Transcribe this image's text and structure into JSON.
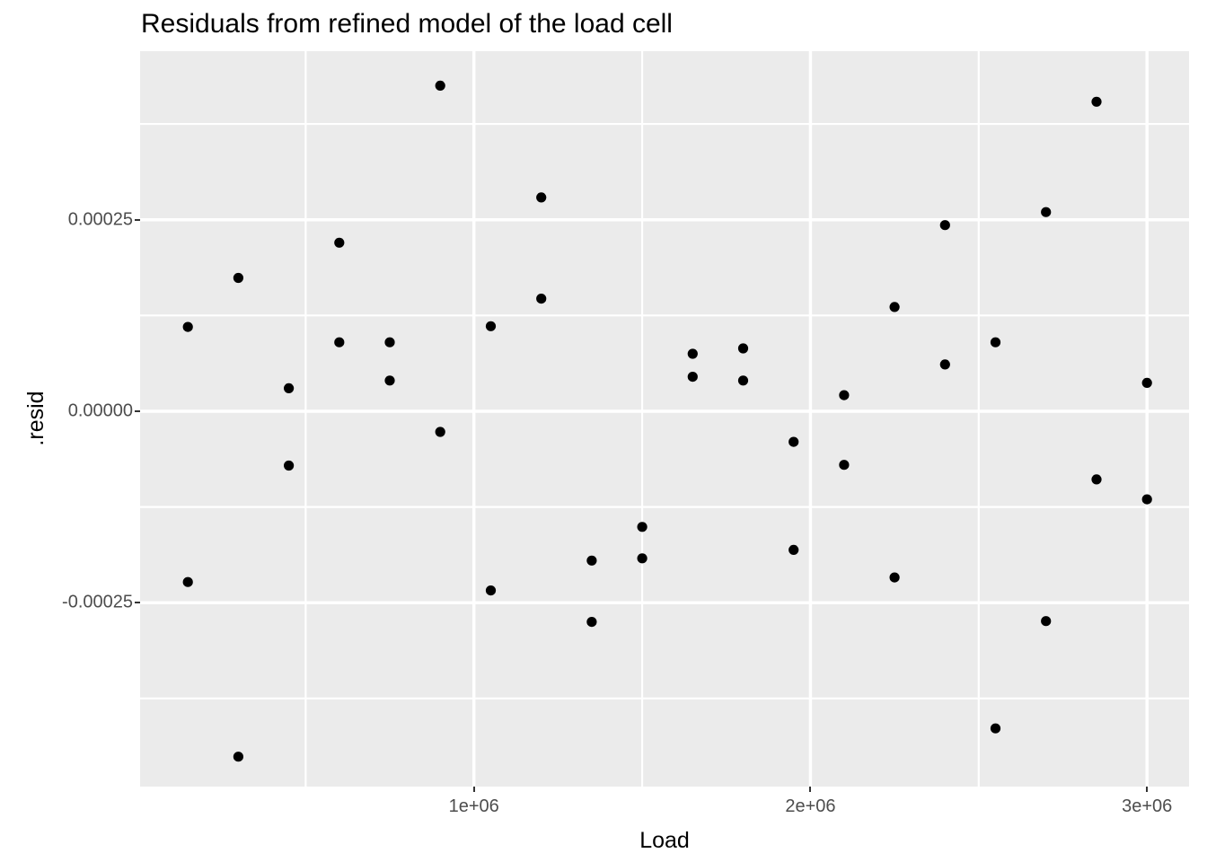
{
  "chart_data": {
    "type": "scatter",
    "title": "Residuals from refined model of the load cell",
    "xlabel": "Load",
    "ylabel": ".resid",
    "xlim": [
      8000,
      3125000
    ],
    "ylim": [
      -0.00049,
      0.00047
    ],
    "grid": true,
    "legend_position": "none",
    "panel_bg": "#EBEBEB",
    "grid_color": "#FFFFFF",
    "point_color": "#000000",
    "point_radius": 5.6,
    "x_major_ticks": [
      1000000,
      2000000,
      3000000
    ],
    "x_tick_labels": [
      "1e+06",
      "2e+06",
      "3e+06"
    ],
    "x_minor_ticks": [
      500000,
      1500000,
      2500000
    ],
    "y_major_ticks": [
      0.00025,
      0.0,
      -0.00025
    ],
    "y_tick_labels": [
      "0.00025",
      "0.00000",
      "-0.00025"
    ],
    "y_minor_ticks": [
      0.000375,
      0.000125,
      -0.000125,
      -0.000375
    ],
    "points": [
      {
        "x": 150000,
        "y": 0.00011
      },
      {
        "x": 150000,
        "y": -0.000223
      },
      {
        "x": 300000,
        "y": 0.000174
      },
      {
        "x": 300000,
        "y": -0.000451
      },
      {
        "x": 450000,
        "y": 3e-05
      },
      {
        "x": 450000,
        "y": -7.1e-05
      },
      {
        "x": 600000,
        "y": 0.00022
      },
      {
        "x": 600000,
        "y": 9e-05
      },
      {
        "x": 750000,
        "y": 9e-05
      },
      {
        "x": 750000,
        "y": 4e-05
      },
      {
        "x": 900000,
        "y": 0.000425
      },
      {
        "x": 900000,
        "y": -2.7e-05
      },
      {
        "x": 1050000,
        "y": 0.000111
      },
      {
        "x": 1050000,
        "y": -0.000234
      },
      {
        "x": 1200000,
        "y": 0.000279
      },
      {
        "x": 1200000,
        "y": 0.000147
      },
      {
        "x": 1350000,
        "y": -0.000195
      },
      {
        "x": 1350000,
        "y": -0.000275
      },
      {
        "x": 1500000,
        "y": -0.000151
      },
      {
        "x": 1500000,
        "y": -0.000192
      },
      {
        "x": 1650000,
        "y": 7.5e-05
      },
      {
        "x": 1650000,
        "y": 4.5e-05
      },
      {
        "x": 1800000,
        "y": 8.2e-05
      },
      {
        "x": 1800000,
        "y": 4e-05
      },
      {
        "x": 1950000,
        "y": -4e-05
      },
      {
        "x": 1950000,
        "y": -0.000181
      },
      {
        "x": 2100000,
        "y": 2.1e-05
      },
      {
        "x": 2100000,
        "y": -7e-05
      },
      {
        "x": 2250000,
        "y": 0.000136
      },
      {
        "x": 2250000,
        "y": -0.000217
      },
      {
        "x": 2400000,
        "y": 0.000243
      },
      {
        "x": 2400000,
        "y": 6.1e-05
      },
      {
        "x": 2550000,
        "y": 9e-05
      },
      {
        "x": 2550000,
        "y": -0.000414
      },
      {
        "x": 2700000,
        "y": 0.00026
      },
      {
        "x": 2700000,
        "y": -0.000274
      },
      {
        "x": 2850000,
        "y": 0.000404
      },
      {
        "x": 2850000,
        "y": -8.9e-05
      },
      {
        "x": 3000000,
        "y": 3.7e-05
      },
      {
        "x": 3000000,
        "y": -0.000115
      }
    ]
  }
}
